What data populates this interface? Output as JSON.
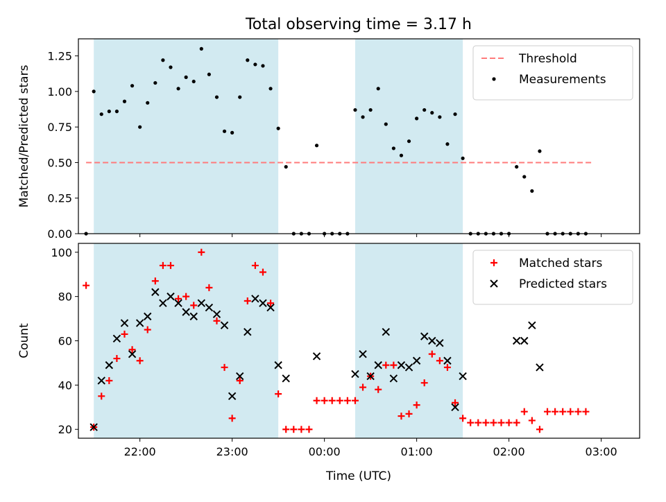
{
  "chart_data": {
    "title": "Total observing time = 3.17 h",
    "xlabel": "Time (UTC)",
    "x_ticks": [
      "22:00",
      "23:00",
      "00:00",
      "01:00",
      "02:00",
      "03:00"
    ],
    "shaded_intervals": [
      [
        "21:30",
        "23:30"
      ],
      [
        "00:20",
        "01:30"
      ]
    ],
    "shade_color": "#add8e6",
    "panels": [
      {
        "type": "scatter",
        "ylabel": "Matched/Predicted stars",
        "ylim": [
          0,
          1.37
        ],
        "y_ticks": [
          0.0,
          0.25,
          0.5,
          0.75,
          1.0,
          1.25
        ],
        "y_tick_labels": [
          "0.00",
          "0.25",
          "0.50",
          "0.75",
          "1.00",
          "1.25"
        ],
        "legend_position": "top-right",
        "threshold": {
          "name": "Threshold",
          "value": 0.5,
          "x_range": [
            "21:25",
            "02:55"
          ],
          "color": "#ff7b7b"
        },
        "series": [
          {
            "name": "Measurements",
            "marker": "dot",
            "color": "#000000",
            "x": [
              "21:25",
              "21:30",
              "21:35",
              "21:40",
              "21:45",
              "21:50",
              "21:55",
              "22:00",
              "22:05",
              "22:10",
              "22:15",
              "22:20",
              "22:25",
              "22:30",
              "22:35",
              "22:40",
              "22:45",
              "22:50",
              "22:55",
              "23:00",
              "23:05",
              "23:10",
              "23:15",
              "23:20",
              "23:25",
              "23:30",
              "23:35",
              "23:40",
              "23:45",
              "23:50",
              "23:55",
              "00:00",
              "00:05",
              "00:10",
              "00:15",
              "00:20",
              "00:25",
              "00:30",
              "00:35",
              "00:40",
              "00:45",
              "00:50",
              "00:55",
              "01:00",
              "01:05",
              "01:10",
              "01:15",
              "01:20",
              "01:25",
              "01:30",
              "01:35",
              "01:40",
              "01:45",
              "01:50",
              "01:55",
              "02:00",
              "02:05",
              "02:10",
              "02:15",
              "02:20",
              "02:25",
              "02:30",
              "02:35",
              "02:40",
              "02:45",
              "02:50"
            ],
            "y": [
              0.0,
              1.0,
              0.84,
              0.86,
              0.86,
              0.93,
              1.04,
              0.75,
              0.92,
              1.06,
              1.22,
              1.17,
              1.02,
              1.1,
              1.07,
              1.3,
              1.12,
              0.96,
              0.72,
              0.71,
              0.96,
              1.22,
              1.19,
              1.18,
              1.02,
              0.74,
              0.47,
              0.0,
              0.0,
              0.0,
              0.62,
              0.0,
              0.0,
              0.0,
              0.0,
              0.87,
              0.82,
              0.87,
              1.02,
              0.77,
              0.6,
              0.55,
              0.65,
              0.81,
              0.87,
              0.85,
              0.82,
              0.63,
              0.84,
              0.53,
              0.0,
              0.0,
              0.0,
              0.0,
              0.0,
              0.0,
              0.47,
              0.4,
              0.3,
              0.58,
              0.0,
              0.0,
              0.0,
              0.0,
              0.0,
              0.0
            ]
          }
        ]
      },
      {
        "type": "scatter",
        "ylabel": "Count",
        "ylim": [
          16,
          104
        ],
        "y_ticks": [
          20,
          40,
          60,
          80,
          100
        ],
        "y_tick_labels": [
          "20",
          "40",
          "60",
          "80",
          "100"
        ],
        "legend_position": "top-right",
        "series": [
          {
            "name": "Matched stars",
            "marker": "plus",
            "color": "#ff0000",
            "x": [
              "21:25",
              "21:30",
              "21:35",
              "21:40",
              "21:45",
              "21:50",
              "21:55",
              "22:00",
              "22:05",
              "22:10",
              "22:15",
              "22:20",
              "22:25",
              "22:30",
              "22:35",
              "22:40",
              "22:45",
              "22:50",
              "22:55",
              "23:00",
              "23:05",
              "23:10",
              "23:15",
              "23:20",
              "23:25",
              "23:30",
              "23:35",
              "23:40",
              "23:45",
              "23:50",
              "23:55",
              "00:00",
              "00:05",
              "00:10",
              "00:15",
              "00:20",
              "00:25",
              "00:30",
              "00:35",
              "00:40",
              "00:45",
              "00:50",
              "00:55",
              "01:00",
              "01:05",
              "01:10",
              "01:15",
              "01:20",
              "01:25",
              "01:30",
              "01:35",
              "01:40",
              "01:45",
              "01:50",
              "01:55",
              "02:00",
              "02:05",
              "02:10",
              "02:15",
              "02:20",
              "02:25",
              "02:30",
              "02:35",
              "02:40",
              "02:45",
              "02:50"
            ],
            "y": [
              85,
              21,
              35,
              42,
              52,
              63,
              56,
              51,
              65,
              87,
              94,
              94,
              79,
              80,
              76,
              100,
              84,
              69,
              48,
              25,
              42,
              78,
              94,
              91,
              77,
              36,
              20,
              20,
              20,
              20,
              33,
              33,
              33,
              33,
              33,
              33,
              39,
              44,
              38,
              49,
              49,
              26,
              27,
              31,
              41,
              54,
              51,
              48,
              32,
              25,
              23,
              23,
              23,
              23,
              23,
              23,
              23,
              28,
              24,
              20,
              28,
              28,
              28,
              28,
              28,
              28
            ]
          },
          {
            "name": "Predicted stars",
            "marker": "x",
            "color": "#000000",
            "x": [
              "21:30",
              "21:35",
              "21:40",
              "21:45",
              "21:50",
              "21:55",
              "22:00",
              "22:05",
              "22:10",
              "22:15",
              "22:20",
              "22:25",
              "22:30",
              "22:35",
              "22:40",
              "22:45",
              "22:50",
              "22:55",
              "23:00",
              "23:05",
              "23:10",
              "23:15",
              "23:20",
              "23:25",
              "23:30",
              "23:35",
              "23:55",
              "00:20",
              "00:25",
              "00:30",
              "00:35",
              "00:40",
              "00:45",
              "00:50",
              "00:55",
              "01:00",
              "01:05",
              "01:10",
              "01:15",
              "01:20",
              "01:25",
              "01:30",
              "02:05",
              "02:10",
              "02:15",
              "02:20"
            ],
            "y": [
              21,
              42,
              49,
              61,
              68,
              54,
              68,
              71,
              82,
              77,
              80,
              77,
              73,
              71,
              77,
              75,
              72,
              67,
              35,
              44,
              64,
              79,
              77,
              75,
              49,
              43,
              53,
              45,
              54,
              44,
              49,
              64,
              43,
              49,
              48,
              51,
              62,
              60,
              59,
              51,
              30,
              44,
              60,
              60,
              67,
              48
            ]
          }
        ]
      }
    ]
  }
}
